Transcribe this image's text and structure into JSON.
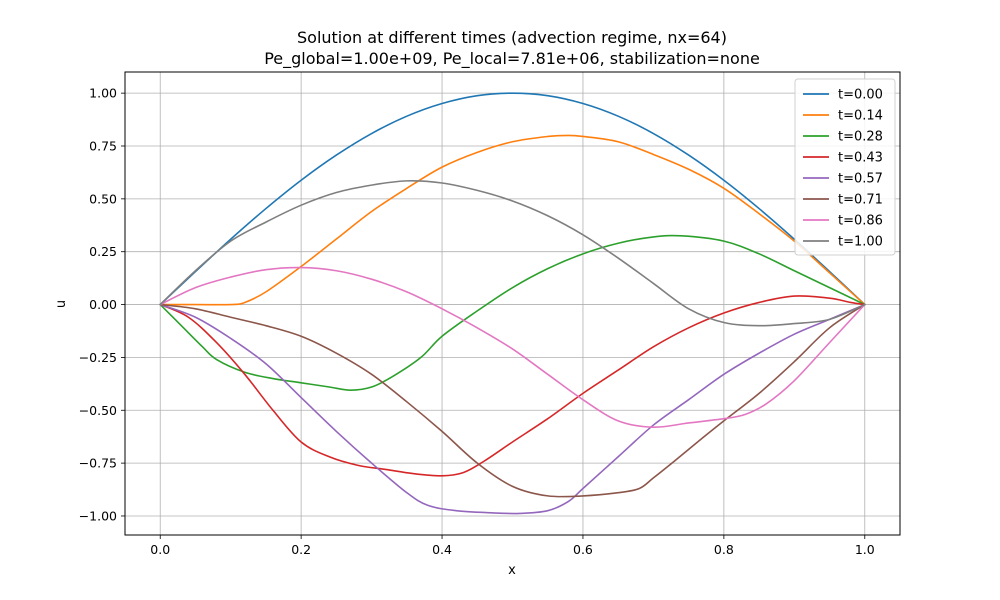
{
  "chart_data": {
    "type": "line",
    "title_lines": [
      "Solution at different times (advection regime, nx=64)",
      "Pe_global=1.00e+09, Pe_local=7.81e+06, stabilization=none"
    ],
    "xlabel": "x",
    "ylabel": "u",
    "xlim": [
      -0.05,
      1.05
    ],
    "ylim": [
      -1.09,
      1.1
    ],
    "x_ticks": [
      0.0,
      0.2,
      0.4,
      0.6,
      0.8,
      1.0
    ],
    "x_tick_labels": [
      "0.0",
      "0.2",
      "0.4",
      "0.6",
      "0.8",
      "1.0"
    ],
    "y_ticks": [
      -1.0,
      -0.75,
      -0.5,
      -0.25,
      0.0,
      0.25,
      0.5,
      0.75,
      1.0
    ],
    "y_tick_labels": [
      "−1.00",
      "−0.75",
      "−0.50",
      "−0.25",
      "0.00",
      "0.25",
      "0.50",
      "0.75",
      "1.00"
    ],
    "grid": true,
    "legend_position": "top-right",
    "series": [
      {
        "name": "t=0.00",
        "color": "#1f77b4",
        "points": [
          [
            0,
            0
          ],
          [
            0.05,
            0.156
          ],
          [
            0.1,
            0.309
          ],
          [
            0.15,
            0.454
          ],
          [
            0.2,
            0.588
          ],
          [
            0.25,
            0.707
          ],
          [
            0.3,
            0.809
          ],
          [
            0.35,
            0.891
          ],
          [
            0.4,
            0.951
          ],
          [
            0.45,
            0.988
          ],
          [
            0.5,
            1.0
          ],
          [
            0.55,
            0.988
          ],
          [
            0.6,
            0.951
          ],
          [
            0.65,
            0.891
          ],
          [
            0.7,
            0.809
          ],
          [
            0.75,
            0.707
          ],
          [
            0.8,
            0.588
          ],
          [
            0.85,
            0.454
          ],
          [
            0.9,
            0.309
          ],
          [
            0.95,
            0.156
          ],
          [
            1.0,
            0
          ]
        ]
      },
      {
        "name": "t=0.14",
        "color": "#ff7f0e",
        "points": [
          [
            0,
            0
          ],
          [
            0.05,
            0.0
          ],
          [
            0.1,
            0.0
          ],
          [
            0.12,
            0.01
          ],
          [
            0.15,
            0.06
          ],
          [
            0.2,
            0.18
          ],
          [
            0.25,
            0.31
          ],
          [
            0.3,
            0.44
          ],
          [
            0.35,
            0.55
          ],
          [
            0.4,
            0.65
          ],
          [
            0.45,
            0.72
          ],
          [
            0.5,
            0.77
          ],
          [
            0.55,
            0.795
          ],
          [
            0.58,
            0.8
          ],
          [
            0.6,
            0.795
          ],
          [
            0.65,
            0.77
          ],
          [
            0.7,
            0.71
          ],
          [
            0.75,
            0.64
          ],
          [
            0.8,
            0.55
          ],
          [
            0.85,
            0.43
          ],
          [
            0.9,
            0.3
          ],
          [
            0.95,
            0.15
          ],
          [
            1.0,
            0
          ]
        ]
      },
      {
        "name": "t=0.28",
        "color": "#2ca02c",
        "points": [
          [
            0,
            0
          ],
          [
            0.03,
            -0.1
          ],
          [
            0.06,
            -0.2
          ],
          [
            0.08,
            -0.26
          ],
          [
            0.12,
            -0.32
          ],
          [
            0.16,
            -0.35
          ],
          [
            0.2,
            -0.37
          ],
          [
            0.24,
            -0.39
          ],
          [
            0.27,
            -0.405
          ],
          [
            0.3,
            -0.39
          ],
          [
            0.33,
            -0.34
          ],
          [
            0.37,
            -0.25
          ],
          [
            0.4,
            -0.15
          ],
          [
            0.45,
            -0.03
          ],
          [
            0.5,
            0.08
          ],
          [
            0.55,
            0.17
          ],
          [
            0.6,
            0.24
          ],
          [
            0.65,
            0.29
          ],
          [
            0.7,
            0.32
          ],
          [
            0.74,
            0.325
          ],
          [
            0.8,
            0.3
          ],
          [
            0.85,
            0.24
          ],
          [
            0.9,
            0.16
          ],
          [
            0.95,
            0.08
          ],
          [
            1.0,
            0
          ]
        ]
      },
      {
        "name": "t=0.43",
        "color": "#d62728",
        "points": [
          [
            0,
            0
          ],
          [
            0.04,
            -0.06
          ],
          [
            0.08,
            -0.18
          ],
          [
            0.12,
            -0.33
          ],
          [
            0.16,
            -0.5
          ],
          [
            0.2,
            -0.65
          ],
          [
            0.24,
            -0.72
          ],
          [
            0.28,
            -0.76
          ],
          [
            0.32,
            -0.78
          ],
          [
            0.36,
            -0.8
          ],
          [
            0.4,
            -0.81
          ],
          [
            0.43,
            -0.795
          ],
          [
            0.46,
            -0.74
          ],
          [
            0.5,
            -0.65
          ],
          [
            0.55,
            -0.54
          ],
          [
            0.6,
            -0.42
          ],
          [
            0.65,
            -0.31
          ],
          [
            0.7,
            -0.2
          ],
          [
            0.75,
            -0.11
          ],
          [
            0.8,
            -0.04
          ],
          [
            0.85,
            0.01
          ],
          [
            0.9,
            0.04
          ],
          [
            0.95,
            0.03
          ],
          [
            0.98,
            0.01
          ],
          [
            1.0,
            0
          ]
        ]
      },
      {
        "name": "t=0.57",
        "color": "#9467bd",
        "points": [
          [
            0,
            0
          ],
          [
            0.05,
            -0.06
          ],
          [
            0.1,
            -0.16
          ],
          [
            0.15,
            -0.28
          ],
          [
            0.2,
            -0.44
          ],
          [
            0.25,
            -0.6
          ],
          [
            0.3,
            -0.75
          ],
          [
            0.35,
            -0.89
          ],
          [
            0.38,
            -0.95
          ],
          [
            0.42,
            -0.975
          ],
          [
            0.47,
            -0.985
          ],
          [
            0.51,
            -0.988
          ],
          [
            0.55,
            -0.975
          ],
          [
            0.58,
            -0.93
          ],
          [
            0.6,
            -0.87
          ],
          [
            0.65,
            -0.72
          ],
          [
            0.7,
            -0.57
          ],
          [
            0.75,
            -0.45
          ],
          [
            0.8,
            -0.33
          ],
          [
            0.85,
            -0.23
          ],
          [
            0.9,
            -0.14
          ],
          [
            0.95,
            -0.07
          ],
          [
            1.0,
            0
          ]
        ]
      },
      {
        "name": "t=0.71",
        "color": "#8c564b",
        "points": [
          [
            0,
            0
          ],
          [
            0.05,
            -0.02
          ],
          [
            0.1,
            -0.06
          ],
          [
            0.15,
            -0.1
          ],
          [
            0.2,
            -0.15
          ],
          [
            0.25,
            -0.23
          ],
          [
            0.3,
            -0.33
          ],
          [
            0.35,
            -0.46
          ],
          [
            0.4,
            -0.6
          ],
          [
            0.45,
            -0.75
          ],
          [
            0.5,
            -0.86
          ],
          [
            0.55,
            -0.905
          ],
          [
            0.6,
            -0.905
          ],
          [
            0.65,
            -0.89
          ],
          [
            0.68,
            -0.87
          ],
          [
            0.7,
            -0.82
          ],
          [
            0.73,
            -0.74
          ],
          [
            0.77,
            -0.63
          ],
          [
            0.8,
            -0.55
          ],
          [
            0.85,
            -0.42
          ],
          [
            0.9,
            -0.27
          ],
          [
            0.95,
            -0.11
          ],
          [
            1.0,
            0
          ]
        ]
      },
      {
        "name": "t=0.86",
        "color": "#e377c2",
        "points": [
          [
            0,
            0
          ],
          [
            0.05,
            0.08
          ],
          [
            0.1,
            0.13
          ],
          [
            0.15,
            0.165
          ],
          [
            0.2,
            0.175
          ],
          [
            0.25,
            0.16
          ],
          [
            0.3,
            0.12
          ],
          [
            0.35,
            0.06
          ],
          [
            0.4,
            -0.02
          ],
          [
            0.45,
            -0.11
          ],
          [
            0.5,
            -0.21
          ],
          [
            0.55,
            -0.33
          ],
          [
            0.6,
            -0.45
          ],
          [
            0.65,
            -0.55
          ],
          [
            0.7,
            -0.58
          ],
          [
            0.75,
            -0.56
          ],
          [
            0.8,
            -0.54
          ],
          [
            0.83,
            -0.52
          ],
          [
            0.86,
            -0.47
          ],
          [
            0.9,
            -0.36
          ],
          [
            0.95,
            -0.18
          ],
          [
            1.0,
            0
          ]
        ]
      },
      {
        "name": "t=1.00",
        "color": "#7f7f7f",
        "points": [
          [
            0,
            0
          ],
          [
            0.05,
            0.16
          ],
          [
            0.1,
            0.3
          ],
          [
            0.15,
            0.39
          ],
          [
            0.2,
            0.47
          ],
          [
            0.25,
            0.53
          ],
          [
            0.3,
            0.565
          ],
          [
            0.35,
            0.585
          ],
          [
            0.4,
            0.575
          ],
          [
            0.45,
            0.54
          ],
          [
            0.5,
            0.49
          ],
          [
            0.55,
            0.42
          ],
          [
            0.6,
            0.33
          ],
          [
            0.65,
            0.22
          ],
          [
            0.7,
            0.1
          ],
          [
            0.75,
            -0.02
          ],
          [
            0.8,
            -0.085
          ],
          [
            0.85,
            -0.1
          ],
          [
            0.9,
            -0.09
          ],
          [
            0.95,
            -0.07
          ],
          [
            1.0,
            0
          ]
        ]
      }
    ]
  }
}
